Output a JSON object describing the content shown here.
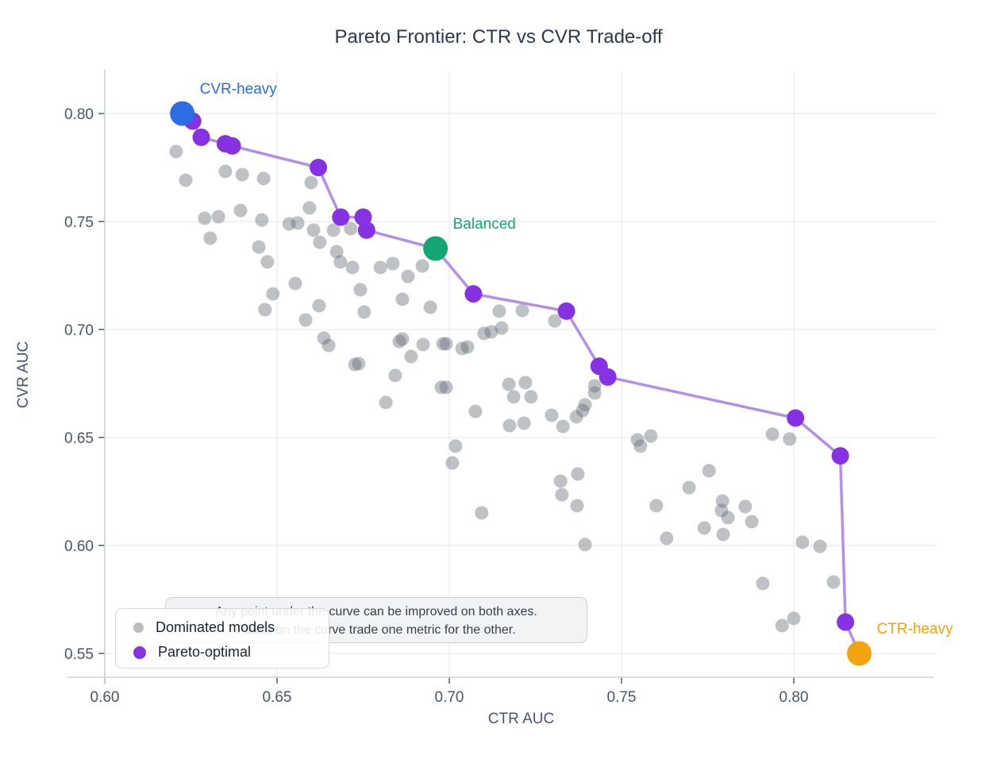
{
  "chart_data": {
    "type": "scatter",
    "title": "Pareto Frontier: CTR vs CVR Trade-off",
    "xlabel": "CTR AUC",
    "ylabel": "CVR AUC",
    "x_ticks": [
      0.6,
      0.65,
      0.7,
      0.75,
      0.8
    ],
    "y_ticks": [
      0.55,
      0.6,
      0.65,
      0.7,
      0.75,
      0.8
    ],
    "xlim": [
      0.6,
      0.842
    ],
    "ylim": [
      0.539,
      0.8195
    ],
    "grid": true,
    "legend": [
      {
        "label": "Dominated models",
        "color": "#b9bcc1"
      },
      {
        "label": "Pareto-optimal",
        "color": "#8632e2"
      }
    ],
    "annotation": {
      "line1": "Any point under the curve can be improved on both axes.",
      "line2": "Points on the curve trade one metric for the other."
    },
    "highlights": [
      {
        "label": "CVR-heavy",
        "color": "#2b6de2",
        "x": 0.6225,
        "y": 0.8
      },
      {
        "label": "Balanced",
        "color": "#14a573",
        "x": 0.696,
        "y": 0.7375
      },
      {
        "label": "CTR-heavy",
        "color": "#f2a30d",
        "x": 0.819,
        "y": 0.55
      }
    ],
    "series": [
      {
        "name": "Dominated models",
        "color": "#b9bcc1",
        "points": [
          [
            0.6207,
            0.7824
          ],
          [
            0.6235,
            0.7691
          ],
          [
            0.635,
            0.7732
          ],
          [
            0.6399,
            0.7717
          ],
          [
            0.6461,
            0.7699
          ],
          [
            0.6599,
            0.768
          ],
          [
            0.629,
            0.7515
          ],
          [
            0.633,
            0.7522
          ],
          [
            0.6394,
            0.7551
          ],
          [
            0.6456,
            0.7507
          ],
          [
            0.6306,
            0.7423
          ],
          [
            0.6535,
            0.7489
          ],
          [
            0.656,
            0.7493
          ],
          [
            0.6594,
            0.7563
          ],
          [
            0.6606,
            0.746
          ],
          [
            0.6624,
            0.7404
          ],
          [
            0.6447,
            0.7382
          ],
          [
            0.6472,
            0.7313
          ],
          [
            0.6664,
            0.746
          ],
          [
            0.6714,
            0.7467
          ],
          [
            0.6673,
            0.736
          ],
          [
            0.6684,
            0.7313
          ],
          [
            0.6719,
            0.7287
          ],
          [
            0.6742,
            0.7184
          ],
          [
            0.6553,
            0.7213
          ],
          [
            0.6488,
            0.7165
          ],
          [
            0.6465,
            0.7092
          ],
          [
            0.6622,
            0.711
          ],
          [
            0.6583,
            0.7044
          ],
          [
            0.6753,
            0.7081
          ],
          [
            0.68,
            0.7287
          ],
          [
            0.6836,
            0.7305
          ],
          [
            0.688,
            0.7246
          ],
          [
            0.6922,
            0.7294
          ],
          [
            0.6864,
            0.714
          ],
          [
            0.6945,
            0.7103
          ],
          [
            0.6991,
            0.6934
          ],
          [
            0.7053,
            0.6919
          ],
          [
            0.7145,
            0.7085
          ],
          [
            0.7152,
            0.7007
          ],
          [
            0.7122,
            0.6989
          ],
          [
            0.665,
            0.6926
          ],
          [
            0.6737,
            0.6842
          ],
          [
            0.6864,
            0.6956
          ],
          [
            0.6636,
            0.696
          ],
          [
            0.6726,
            0.6838
          ],
          [
            0.6855,
            0.6945
          ],
          [
            0.6889,
            0.6875
          ],
          [
            0.6924,
            0.693
          ],
          [
            0.6982,
            0.6934
          ],
          [
            0.6977,
            0.6732
          ],
          [
            0.6991,
            0.6732
          ],
          [
            0.7037,
            0.6912
          ],
          [
            0.7076,
            0.6621
          ],
          [
            0.7101,
            0.6982
          ],
          [
            0.7173,
            0.6746
          ],
          [
            0.7187,
            0.6688
          ],
          [
            0.7175,
            0.6555
          ],
          [
            0.6816,
            0.6662
          ],
          [
            0.6843,
            0.6787
          ],
          [
            0.7018,
            0.646
          ],
          [
            0.7009,
            0.6382
          ],
          [
            0.7094,
            0.6151
          ],
          [
            0.7212,
            0.7088
          ],
          [
            0.7306,
            0.704
          ],
          [
            0.7221,
            0.6754
          ],
          [
            0.7237,
            0.6688
          ],
          [
            0.7422,
            0.6739
          ],
          [
            0.7422,
            0.6706
          ],
          [
            0.7394,
            0.6651
          ],
          [
            0.7387,
            0.6625
          ],
          [
            0.7369,
            0.6596
          ],
          [
            0.7297,
            0.6603
          ],
          [
            0.733,
            0.6551
          ],
          [
            0.7217,
            0.6566
          ],
          [
            0.7546,
            0.6489
          ],
          [
            0.7555,
            0.646
          ],
          [
            0.7585,
            0.6507
          ],
          [
            0.7938,
            0.6515
          ],
          [
            0.7988,
            0.6493
          ],
          [
            0.7373,
            0.6331
          ],
          [
            0.7323,
            0.6298
          ],
          [
            0.7754,
            0.6346
          ],
          [
            0.7696,
            0.6268
          ],
          [
            0.7327,
            0.6235
          ],
          [
            0.7371,
            0.6184
          ],
          [
            0.7394,
            0.6004
          ],
          [
            0.7601,
            0.6184
          ],
          [
            0.7631,
            0.6033
          ],
          [
            0.7793,
            0.6206
          ],
          [
            0.779,
            0.6162
          ],
          [
            0.7809,
            0.6129
          ],
          [
            0.7859,
            0.618
          ],
          [
            0.7878,
            0.611
          ],
          [
            0.774,
            0.6081
          ],
          [
            0.7795,
            0.6051
          ],
          [
            0.791,
            0.5824
          ],
          [
            0.7966,
            0.5629
          ],
          [
            0.8,
            0.5662
          ],
          [
            0.8025,
            0.6015
          ],
          [
            0.8076,
            0.5996
          ],
          [
            0.8115,
            0.5831
          ]
        ]
      },
      {
        "name": "Pareto-optimal",
        "color": "#8632e2",
        "line_color": "#b48fe8",
        "points": [
          [
            0.6225,
            0.8
          ],
          [
            0.6255,
            0.7965
          ],
          [
            0.628,
            0.789
          ],
          [
            0.635,
            0.786
          ],
          [
            0.637,
            0.785
          ],
          [
            0.662,
            0.775
          ],
          [
            0.6685,
            0.752
          ],
          [
            0.675,
            0.752
          ],
          [
            0.676,
            0.746
          ],
          [
            0.696,
            0.7375
          ],
          [
            0.707,
            0.7165
          ],
          [
            0.734,
            0.7085
          ],
          [
            0.7435,
            0.683
          ],
          [
            0.746,
            0.678
          ],
          [
            0.8005,
            0.659
          ],
          [
            0.8135,
            0.6415
          ],
          [
            0.815,
            0.5645
          ],
          [
            0.819,
            0.55
          ]
        ]
      }
    ]
  }
}
